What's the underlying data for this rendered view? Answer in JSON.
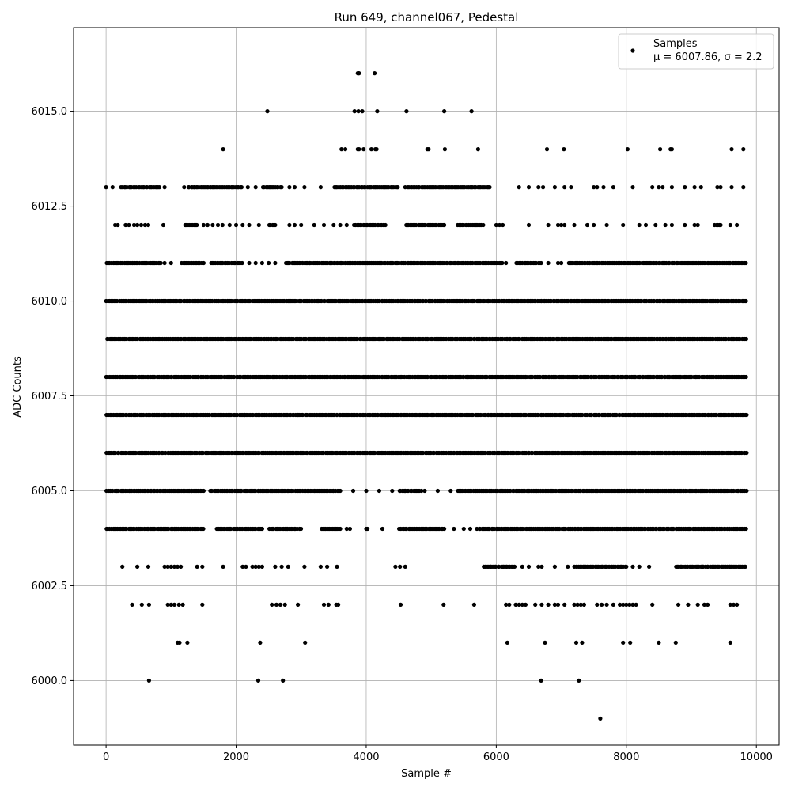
{
  "chart_data": {
    "type": "scatter",
    "title": "Run 649, channel067, Pedestal",
    "xlabel": "Sample #",
    "ylabel": "ADC Counts",
    "xlim": [
      -500,
      10350
    ],
    "ylim": [
      5998.3,
      6017.2
    ],
    "xticks": [
      0,
      2000,
      4000,
      6000,
      8000,
      10000
    ],
    "yticks": [
      6000.0,
      6002.5,
      6005.0,
      6007.5,
      6010.0,
      6012.5,
      6015.0
    ],
    "xtick_labels": [
      "0",
      "2000",
      "4000",
      "6000",
      "8000",
      "10000"
    ],
    "ytick_labels": [
      "6000.0",
      "6002.5",
      "6005.0",
      "6007.5",
      "6010.0",
      "6012.5",
      "6015.0"
    ],
    "grid": true,
    "legend": {
      "placement": "top-right",
      "entries": [
        "Samples",
        "μ = 6007.86, σ = 2.2"
      ]
    },
    "series": [
      {
        "name": "Samples",
        "color": "#000000",
        "x_range": [
          0,
          9850
        ],
        "levels": [
          {
            "y": 6016,
            "x": [
              3870,
              3880,
              3890,
              4130
            ]
          },
          {
            "y": 6015,
            "x": [
              2480,
              3820,
              3880,
              3940,
              4170,
              4620,
              5200,
              5620
            ]
          },
          {
            "y": 6014,
            "x": [
              1800,
              3620,
              3680,
              3870,
              3890,
              3960,
              4080,
              4140,
              4160,
              4940,
              4960,
              5210,
              5720,
              6780,
              7040,
              8020,
              8520,
              8680,
              8700,
              9620,
              9800
            ]
          },
          {
            "y": 6013,
            "dense": [
              [
                220,
                820
              ],
              [
                1250,
                1600
              ],
              [
                1600,
                2100
              ],
              [
                2400,
                2700
              ],
              [
                3500,
                4500
              ],
              [
                4600,
                5900
              ]
            ],
            "x": [
              0,
              100,
              900,
              1200,
              1350,
              2180,
              2300,
              2820,
              2900,
              3050,
              3300,
              6350,
              6500,
              6650,
              6720,
              6900,
              7050,
              7150,
              7500,
              7550,
              7650,
              7800,
              8100,
              8400,
              8500,
              8560,
              8700,
              8900,
              9050,
              9150,
              9400,
              9450,
              9620,
              9800
            ]
          },
          {
            "y": 6012,
            "dense": [
              [
                1200,
                1400
              ],
              [
                2500,
                2600
              ],
              [
                3800,
                4300
              ],
              [
                4600,
                5200
              ],
              [
                5400,
                5800
              ],
              [
                9350,
                9450
              ]
            ],
            "x": [
              140,
              180,
              300,
              350,
              430,
              480,
              540,
              600,
              650,
              880,
              1500,
              1560,
              1640,
              1720,
              1790,
              1900,
              2000,
              2100,
              2200,
              2350,
              2820,
              2900,
              3000,
              3200,
              3350,
              3500,
              3600,
              3700,
              6000,
              6050,
              6100,
              6500,
              6800,
              6950,
              7000,
              7050,
              7200,
              7400,
              7500,
              7700,
              7950,
              8200,
              8300,
              8450,
              8600,
              8700,
              8900,
              9050,
              9100,
              9600,
              9700
            ]
          },
          {
            "y": 6011,
            "dense": [
              [
                0,
                850
              ],
              [
                1150,
                1500
              ],
              [
                1600,
                2100
              ],
              [
                2750,
                6100
              ],
              [
                6300,
                6700
              ],
              [
                7100,
                9850
              ]
            ],
            "x": [
              900,
              1000,
              2200,
              2300,
              2400,
              2500,
              2600,
              6150,
              6800,
              6950,
              7000
            ]
          },
          {
            "y": 6010,
            "dense": [
              [
                0,
                9850
              ]
            ],
            "x": []
          },
          {
            "y": 6009,
            "dense": [
              [
                0,
                9850
              ]
            ],
            "x": []
          },
          {
            "y": 6008,
            "dense": [
              [
                0,
                9850
              ]
            ],
            "x": []
          },
          {
            "y": 6007,
            "dense": [
              [
                0,
                9850
              ]
            ],
            "x": []
          },
          {
            "y": 6006,
            "dense": [
              [
                0,
                9850
              ]
            ],
            "x": []
          },
          {
            "y": 6005,
            "dense": [
              [
                0,
                1500
              ],
              [
                1600,
                3600
              ],
              [
                4500,
                4850
              ],
              [
                5400,
                9850
              ]
            ],
            "x": [
              3800,
              4000,
              4200,
              4400,
              4600,
              4900,
              5100,
              5300
            ]
          },
          {
            "y": 6004,
            "dense": [
              [
                0,
                1500
              ],
              [
                1700,
                2400
              ],
              [
                2500,
                3000
              ],
              [
                3300,
                3600
              ],
              [
                4500,
                5200
              ],
              [
                5700,
                9850
              ]
            ],
            "x": [
              200,
              380,
              3700,
              3750,
              4000,
              4020,
              4250,
              5350,
              5500,
              5600
            ]
          },
          {
            "y": 6003,
            "dense": [
              [
                5800,
                6300
              ],
              [
                7200,
                8000
              ],
              [
                8750,
                9850
              ]
            ],
            "x": [
              250,
              480,
              650,
              900,
              950,
              1000,
              1050,
              1100,
              1150,
              1400,
              1480,
              1800,
              2100,
              2150,
              2250,
              2300,
              2350,
              2400,
              2600,
              2700,
              2800,
              3050,
              3300,
              3400,
              3550,
              4450,
              4520,
              4600,
              6400,
              6500,
              6650,
              6700,
              6900,
              7100,
              8100,
              8200,
              8350
            ]
          },
          {
            "y": 6002,
            "x": [
              400,
              550,
              660,
              950,
              1000,
              1050,
              1120,
              1180,
              1480,
              2550,
              2620,
              2680,
              2750,
              2950,
              3350,
              3420,
              3540,
              3570,
              4530,
              5190,
              5660,
              6150,
              6200,
              6300,
              6350,
              6400,
              6450,
              6600,
              6700,
              6800,
              6900,
              6950,
              7050,
              7200,
              7250,
              7300,
              7350,
              7550,
              7620,
              7700,
              7800,
              7900,
              7950,
              8000,
              8050,
              8100,
              8150,
              8400,
              8800,
              8950,
              9100,
              9200,
              9250,
              9600,
              9650,
              9700
            ]
          },
          {
            "y": 6001,
            "x": [
              1100,
              1130,
              1250,
              2370,
              3060,
              6170,
              6750,
              7230,
              7320,
              7950,
              8060,
              8500,
              8760,
              9600
            ]
          },
          {
            "y": 6000,
            "x": [
              660,
              2340,
              2720,
              6690,
              7270
            ]
          },
          {
            "y": 5999,
            "x": [
              7600
            ]
          }
        ]
      }
    ]
  }
}
